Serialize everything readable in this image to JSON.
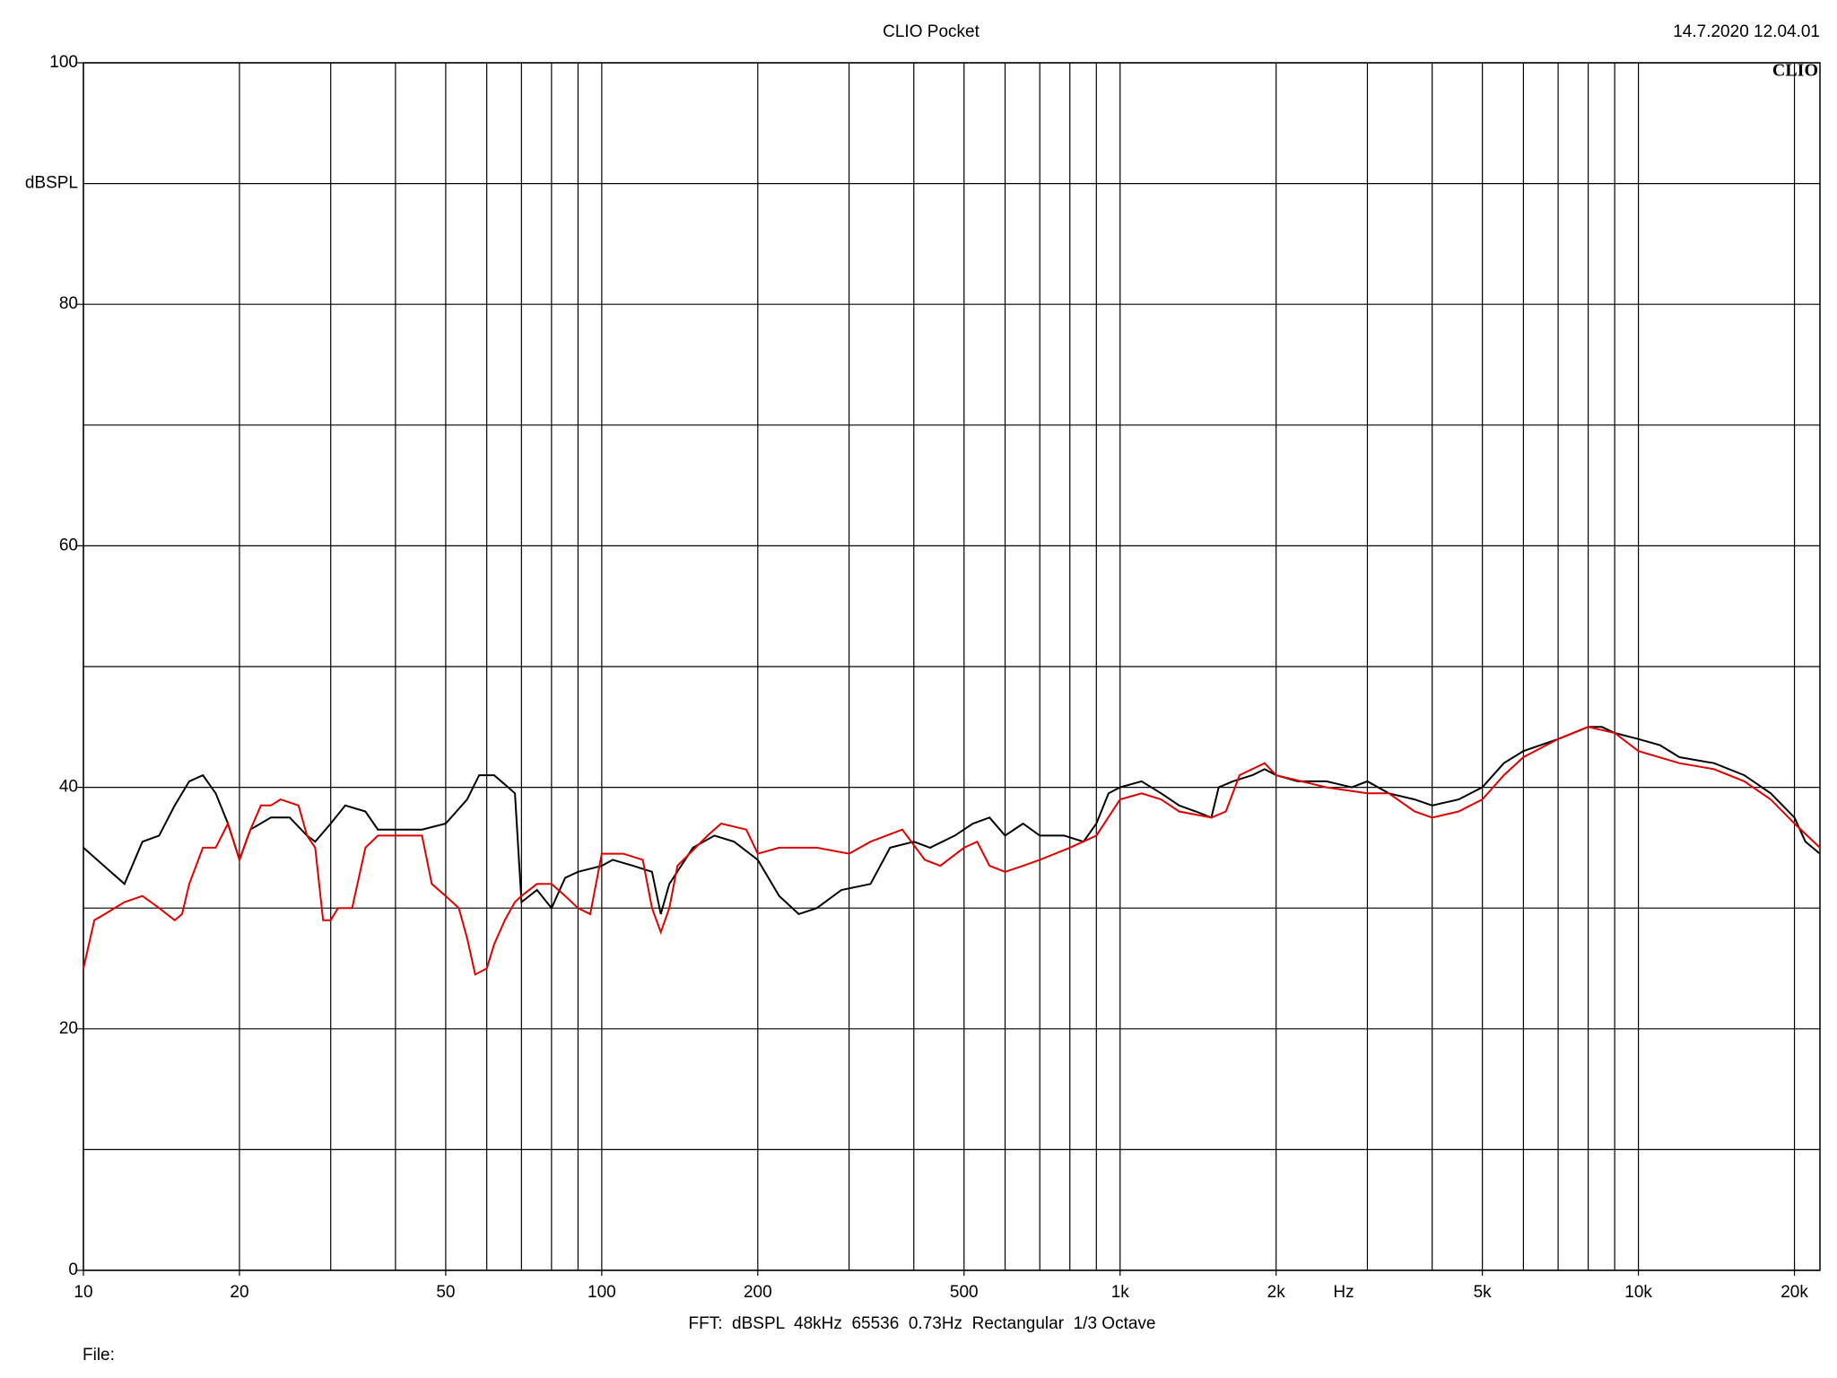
{
  "chart_data": {
    "type": "line",
    "title": "CLIO Pocket",
    "timestamp": "14.7.2020 12.04.01",
    "logo": "CLIO",
    "ylabel": "dBSPL",
    "xlabel": "Hz",
    "footer": "FFT:  dBSPL  48kHz  65536  0.73Hz  Rectangular  1/3 Octave",
    "file_label": "File:",
    "xscale": "log",
    "grid": true,
    "xlim": [
      10,
      22400
    ],
    "ylim": [
      0,
      100
    ],
    "xticks": [
      10,
      20,
      50,
      100,
      200,
      500,
      {
        "value": 1000,
        "label": "1k"
      },
      {
        "value": 2000,
        "label": "2k"
      },
      {
        "value": 5000,
        "label": "5k"
      },
      {
        "value": 10000,
        "label": "10k"
      },
      {
        "value": 20000,
        "label": "20k"
      }
    ],
    "xgrid": [
      30,
      40,
      60,
      70,
      80,
      90,
      300,
      400,
      600,
      700,
      800,
      900,
      3000,
      4000,
      6000,
      7000,
      8000,
      9000
    ],
    "yticks": [
      0,
      20,
      40,
      60,
      80,
      100
    ],
    "ygrid": [
      10,
      30,
      50,
      70,
      90
    ],
    "series": [
      {
        "color": "#000000",
        "x": [
          10,
          12,
          13,
          14,
          15,
          16,
          17,
          18,
          19,
          20,
          21,
          23,
          25,
          27,
          28,
          30,
          32,
          35,
          37,
          40,
          45,
          50,
          55,
          58,
          62,
          66,
          68,
          70,
          75,
          80,
          85,
          90,
          100,
          105,
          115,
          125,
          130,
          135,
          150,
          165,
          180,
          200,
          220,
          240,
          260,
          290,
          330,
          360,
          400,
          430,
          480,
          520,
          560,
          600,
          650,
          700,
          780,
          850,
          900,
          950,
          1000,
          1100,
          1200,
          1300,
          1400,
          1500,
          1550,
          1650,
          1800,
          1900,
          2000,
          2200,
          2500,
          2800,
          3000,
          3300,
          3700,
          4000,
          4500,
          5000,
          5500,
          6000,
          7000,
          8000,
          8500,
          9000,
          10000,
          11000,
          12000,
          14000,
          16000,
          18000,
          20000,
          21000,
          22400
        ],
        "values": [
          35,
          32,
          35.5,
          36,
          38.5,
          40.5,
          41,
          39.5,
          37,
          34,
          36.5,
          37.5,
          37.5,
          36,
          35.5,
          37,
          38.5,
          38,
          36.5,
          36.5,
          36.5,
          37,
          39,
          41,
          41,
          40,
          39.5,
          30.5,
          31.5,
          30,
          32.5,
          33,
          33.5,
          34,
          33.5,
          33,
          29.5,
          32,
          35,
          36,
          35.5,
          34,
          31,
          29.5,
          30,
          31.5,
          32,
          35,
          35.5,
          35,
          36,
          37,
          37.5,
          36,
          37,
          36,
          36,
          35.5,
          37,
          39.5,
          40,
          40.5,
          39.5,
          38.5,
          38,
          37.5,
          40,
          40.5,
          41,
          41.5,
          41,
          40.5,
          40.5,
          40,
          40.5,
          39.5,
          39,
          38.5,
          39,
          40,
          42,
          43,
          44,
          45,
          45,
          44.5,
          44,
          43.5,
          42.5,
          42,
          41,
          39.5,
          37.5,
          35.5,
          34.5
        ]
      },
      {
        "color": "#e00000",
        "x": [
          10,
          10.5,
          11,
          12,
          13,
          14,
          15,
          15.5,
          16,
          17,
          18,
          19,
          20,
          21,
          22,
          23,
          24,
          26,
          27,
          28,
          29,
          30,
          31,
          33,
          35,
          37,
          40,
          45,
          47,
          50,
          53,
          55,
          57,
          60,
          62,
          65,
          68,
          70,
          75,
          80,
          85,
          90,
          95,
          100,
          110,
          120,
          125,
          130,
          135,
          140,
          160,
          170,
          190,
          200,
          220,
          260,
          300,
          330,
          380,
          420,
          450,
          500,
          530,
          560,
          600,
          650,
          700,
          800,
          900,
          1000,
          1100,
          1200,
          1300,
          1500,
          1600,
          1700,
          1900,
          2000,
          2500,
          3000,
          3300,
          3700,
          4000,
          4500,
          5000,
          5500,
          6000,
          7000,
          8000,
          9000,
          10000,
          12000,
          14000,
          16000,
          18000,
          20000,
          22400
        ],
        "values": [
          25,
          29,
          29.5,
          30.5,
          31,
          30,
          29,
          29.5,
          32,
          35,
          35,
          37,
          34,
          36.5,
          38.5,
          38.5,
          39,
          38.5,
          36,
          35,
          29,
          29,
          30,
          30,
          35,
          36,
          36,
          36,
          32,
          31,
          30,
          27.5,
          24.5,
          25,
          27,
          29,
          30.5,
          31,
          32,
          32,
          31,
          30,
          29.5,
          34.5,
          34.5,
          34,
          30,
          28,
          30,
          33.5,
          36,
          37,
          36.5,
          34.5,
          35,
          35,
          34.5,
          35.5,
          36.5,
          34,
          33.5,
          35,
          35.5,
          33.5,
          33,
          33.5,
          34,
          35,
          36,
          39,
          39.5,
          39,
          38,
          37.5,
          38,
          41,
          42,
          41,
          40,
          39.5,
          39.5,
          38,
          37.5,
          38,
          39,
          41,
          42.5,
          44,
          45,
          44.5,
          43,
          42,
          41.5,
          40.5,
          39,
          37,
          35
        ]
      }
    ]
  }
}
